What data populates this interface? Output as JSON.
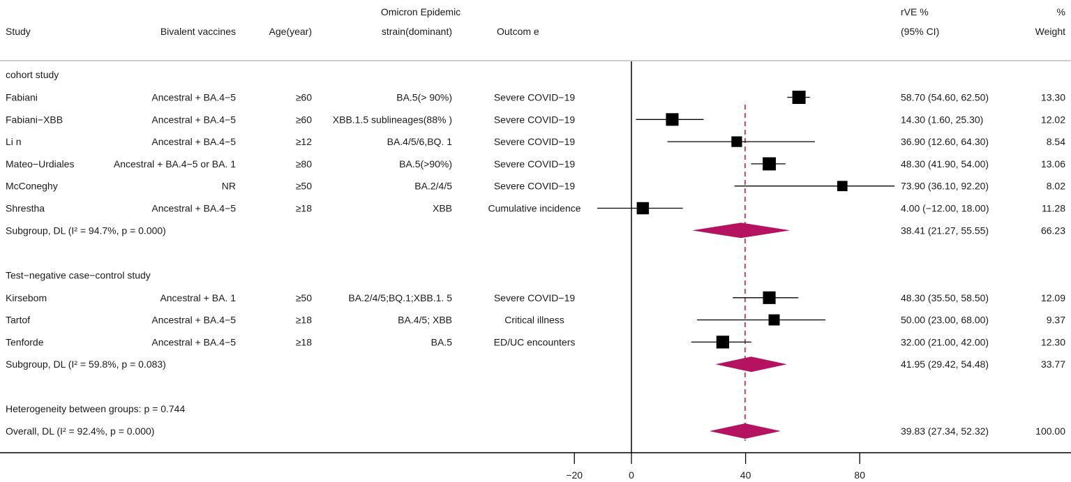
{
  "chart_data": {
    "type": "forest",
    "title": "",
    "headers": {
      "study": "Study",
      "vaccine": "Bivalent vaccines",
      "age": "Age(year)",
      "strain_line1": "Omicron Epidemic",
      "strain_line2": "strain(dominant)",
      "outcome": "Outcom e",
      "effect_line1": "rVE %",
      "effect_line2": "(95% CI)",
      "weight_line1": "%",
      "weight_line2": "Weight"
    },
    "x_axis": {
      "ticks": [
        -20,
        0,
        40,
        80
      ],
      "tick_labels": [
        "−20",
        "0",
        "40",
        "80"
      ],
      "range": [
        -20,
        100
      ],
      "null_line": 0,
      "overall_line": 39.83
    },
    "colors": {
      "marker": "#000000",
      "diamond": "#b5135f",
      "dashed_line": "#c8102e"
    },
    "groups": [
      {
        "label": "cohort study",
        "studies": [
          {
            "study": "Fabiani",
            "vaccine": "Ancestral + BA.4−5",
            "age": "≥60",
            "strain": "BA.5(> 90%)",
            "outcome": "Severe COVID−19",
            "est": 58.7,
            "lo": 54.6,
            "hi": 62.5,
            "ci_text": "58.70 (54.60, 62.50)",
            "weight": 13.3,
            "weight_text": "13.30"
          },
          {
            "study": "Fabiani−XBB",
            "vaccine": "Ancestral + BA.4−5",
            "age": "≥60",
            "strain": "XBB.1.5 sublineages(88% )",
            "outcome": "Severe COVID−19",
            "est": 14.3,
            "lo": 1.6,
            "hi": 25.3,
            "ci_text": "14.30 (1.60, 25.30)",
            "weight": 12.02,
            "weight_text": "12.02"
          },
          {
            "study": "Li n",
            "vaccine": "Ancestral + BA.4−5",
            "age": "≥12",
            "strain": "BA.4/5/6,BQ. 1",
            "outcome": "Severe COVID−19",
            "est": 36.9,
            "lo": 12.6,
            "hi": 64.3,
            "ci_text": "36.90 (12.60, 64.30)",
            "weight": 8.54,
            "weight_text": "8.54"
          },
          {
            "study": "Mateo−Urdiales",
            "vaccine": "Ancestral + BA.4−5 or BA. 1",
            "age": "≥80",
            "strain": "BA.5(>90%)",
            "outcome": "Severe COVID−19",
            "est": 48.3,
            "lo": 41.9,
            "hi": 54.0,
            "ci_text": "48.30 (41.90, 54.00)",
            "weight": 13.06,
            "weight_text": "13.06"
          },
          {
            "study": "McConeghy",
            "vaccine": "NR",
            "age": "≥50",
            "strain": "BA.2/4/5",
            "outcome": "Severe COVID−19",
            "est": 73.9,
            "lo": 36.1,
            "hi": 92.2,
            "ci_text": "73.90 (36.10, 92.20)",
            "weight": 8.02,
            "weight_text": "8.02"
          },
          {
            "study": "Shrestha",
            "vaccine": "Ancestral + BA.4−5",
            "age": "≥18",
            "strain": "XBB",
            "outcome": "Cumulative incidence",
            "est": 4.0,
            "lo": -12.0,
            "hi": 18.0,
            "ci_text": "4.00 (−12.00, 18.00)",
            "weight": 11.28,
            "weight_text": "11.28"
          }
        ],
        "subgroup": {
          "label": "Subgroup, DL (I² = 94.7%, p = 0.000)",
          "est": 38.41,
          "lo": 21.27,
          "hi": 55.55,
          "ci_text": "38.41 (21.27, 55.55)",
          "weight_text": "66.23"
        }
      },
      {
        "label": "Test−negative case−control study",
        "studies": [
          {
            "study": "Kirsebom",
            "vaccine": "Ancestral + BA. 1",
            "age": "≥50",
            "strain": "BA.2/4/5;BQ.1;XBB.1. 5",
            "outcome": "Severe COVID−19",
            "est": 48.3,
            "lo": 35.5,
            "hi": 58.5,
            "ci_text": "48.30 (35.50, 58.50)",
            "weight": 12.09,
            "weight_text": "12.09"
          },
          {
            "study": "Tartof",
            "vaccine": "Ancestral + BA.4−5",
            "age": "≥18",
            "strain": "BA.4/5; XBB",
            "outcome": "Critical illness",
            "est": 50.0,
            "lo": 23.0,
            "hi": 68.0,
            "ci_text": "50.00 (23.00, 68.00)",
            "weight": 9.37,
            "weight_text": "9.37"
          },
          {
            "study": "Tenforde",
            "vaccine": "Ancestral + BA.4−5",
            "age": "≥18",
            "strain": "BA.5",
            "outcome": "ED/UC encounters",
            "est": 32.0,
            "lo": 21.0,
            "hi": 42.0,
            "ci_text": "32.00 (21.00, 42.00)",
            "weight": 12.3,
            "weight_text": "12.30"
          }
        ],
        "subgroup": {
          "label": "Subgroup, DL (I² = 59.8%, p = 0.083)",
          "est": 41.95,
          "lo": 29.42,
          "hi": 54.48,
          "ci_text": "41.95 (29.42, 54.48)",
          "weight_text": "33.77"
        }
      }
    ],
    "heterogeneity_text": "Heterogeneity between groups: p = 0.744",
    "overall": {
      "label": "Overall, DL (I² = 92.4%, p = 0.000)",
      "est": 39.83,
      "lo": 27.34,
      "hi": 52.32,
      "ci_text": "39.83 (27.34, 52.32)",
      "weight_text": "100.00"
    }
  }
}
